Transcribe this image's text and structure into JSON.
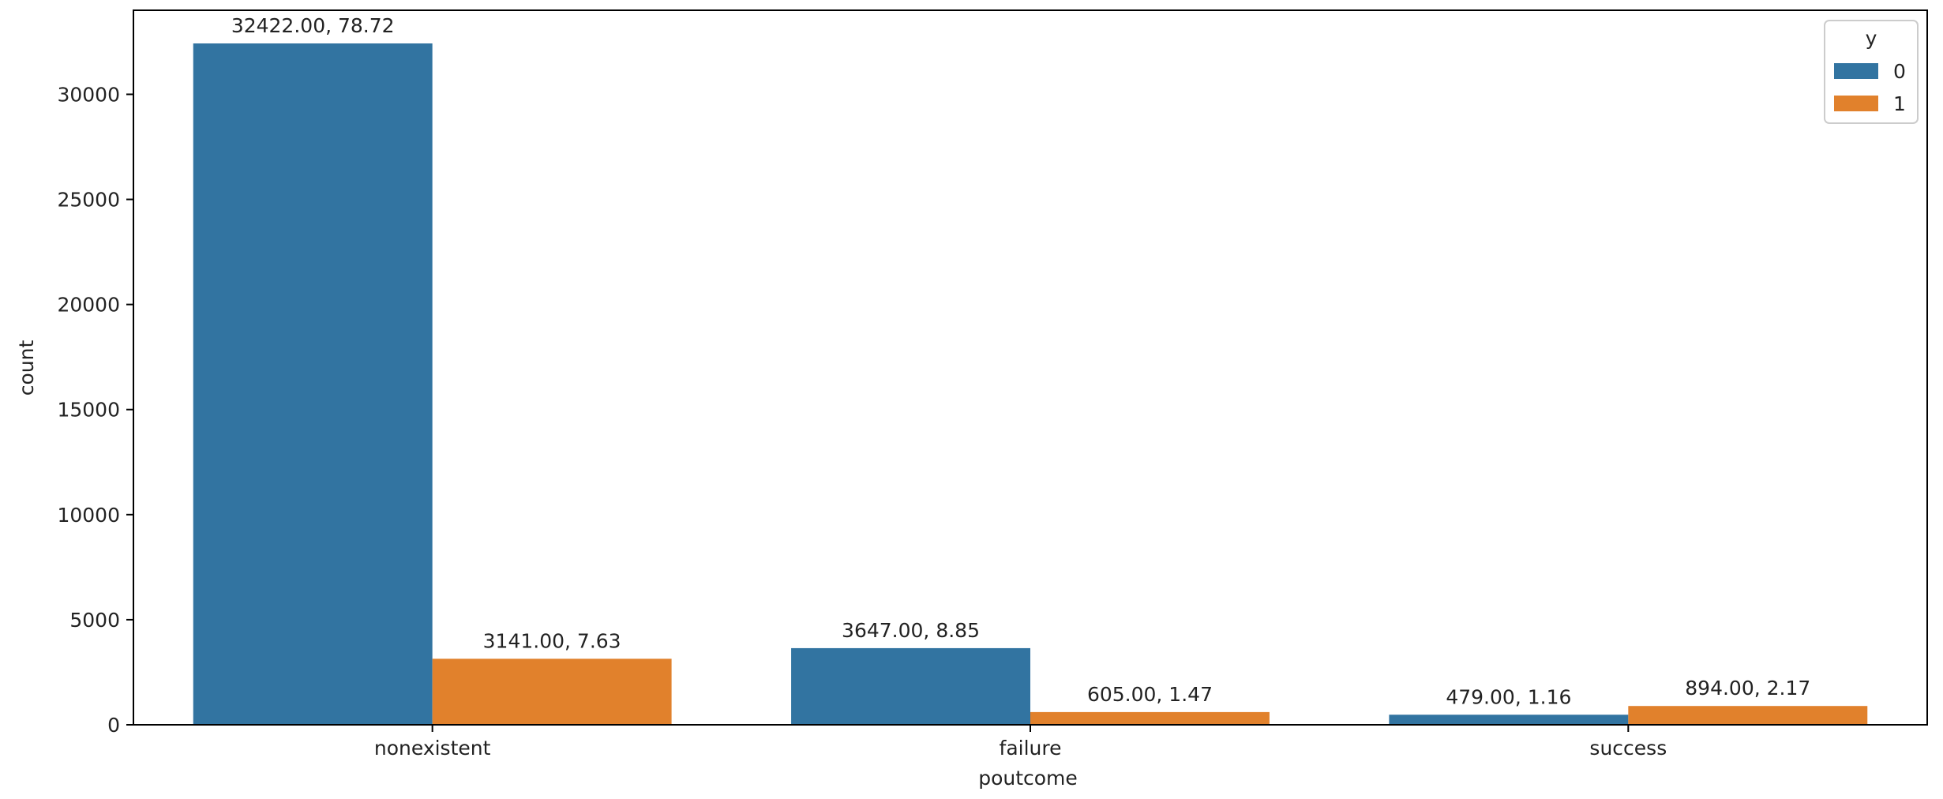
{
  "chart_data": {
    "type": "bar",
    "categories": [
      "nonexistent",
      "failure",
      "success"
    ],
    "series": [
      {
        "name": "0",
        "values": [
          32422,
          3647,
          479
        ],
        "color": "#3274a1"
      },
      {
        "name": "1",
        "values": [
          3141,
          605,
          894
        ],
        "color": "#e1812c"
      }
    ],
    "data_labels": [
      [
        "32422.00, 78.72",
        "3647.00, 8.85",
        "479.00, 1.16"
      ],
      [
        "3141.00, 7.63",
        "605.00, 1.47",
        "894.00, 2.17"
      ]
    ],
    "xlabel": "poutcome",
    "ylabel": "count",
    "ylim": [
      0,
      34000
    ],
    "yticks": [
      0,
      5000,
      10000,
      15000,
      20000,
      25000,
      30000
    ],
    "legend": {
      "title": "y",
      "placement": "top-right"
    },
    "grid": false
  }
}
